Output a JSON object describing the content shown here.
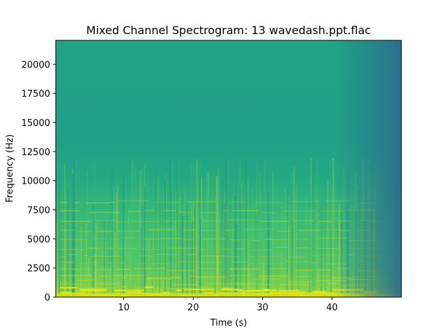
{
  "chart_data": {
    "type": "heatmap",
    "title": "Mixed Channel Spectrogram: 13 wavedash.ppt.flac",
    "xlabel": "Time (s)",
    "ylabel": "Frequency (Hz)",
    "xlim": [
      0.2,
      50
    ],
    "ylim": [
      0,
      22050
    ],
    "x_ticks": [
      10,
      20,
      30,
      40
    ],
    "x_tick_labels": [
      "10",
      "20",
      "30",
      "40"
    ],
    "y_ticks": [
      0,
      2500,
      5000,
      7500,
      10000,
      12500,
      15000,
      17500,
      20000
    ],
    "y_tick_labels": [
      "0",
      "2500",
      "5000",
      "7500",
      "10000",
      "12500",
      "15000",
      "17500",
      "20000"
    ],
    "colormap": "viridis",
    "colors": {
      "high_energy": "#d8e219",
      "mid_energy": "#5ec962",
      "low_energy": "#21918c",
      "lowest_energy": "#31688e"
    }
  }
}
